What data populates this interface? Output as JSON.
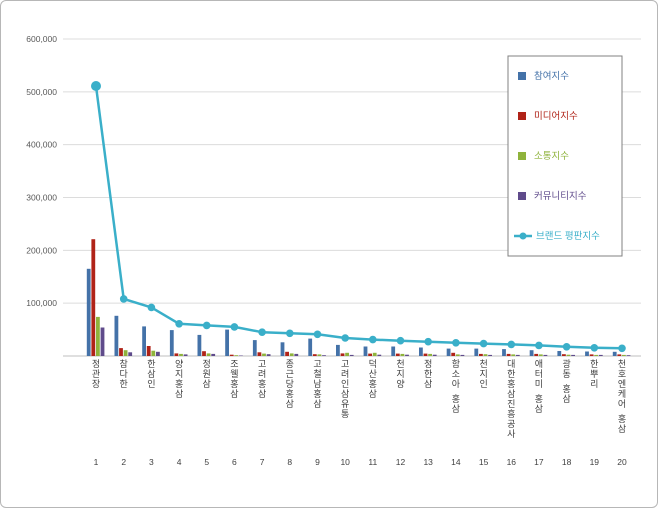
{
  "chart_data": {
    "type": "bar",
    "title": "",
    "categories": [
      "정관장",
      "참다한",
      "한삼인",
      "양지홍삼",
      "정원삼",
      "조웰홍삼",
      "고려홍삼",
      "종근당홍삼",
      "고철남홍삼",
      "고려인삼유통",
      "덕산홍삼",
      "천지양",
      "정한삼",
      "함소아 홍삼",
      "천지인",
      "대한홍삼진흥공사",
      "애터미 홍삼",
      "광동 홍삼",
      "한뿌리",
      "천호엔케어 홍삼"
    ],
    "ranks": [
      "1",
      "2",
      "3",
      "4",
      "5",
      "6",
      "7",
      "8",
      "9",
      "10",
      "11",
      "12",
      "13",
      "14",
      "15",
      "16",
      "17",
      "18",
      "19",
      "20"
    ],
    "series": [
      {
        "name": "참여지수",
        "type": "bar",
        "color": "#4472a8",
        "values": [
          165000,
          76000,
          56000,
          49000,
          40000,
          50000,
          30000,
          26000,
          33000,
          21000,
          18000,
          18000,
          16000,
          14000,
          14000,
          13000,
          11000,
          9500,
          8500,
          8000
        ]
      },
      {
        "name": "미디어지수",
        "type": "bar",
        "color": "#b02318",
        "values": [
          221000,
          15000,
          19000,
          5000,
          9000,
          2500,
          7000,
          8000,
          3500,
          5000,
          4500,
          4500,
          4500,
          6000,
          4000,
          4000,
          4000,
          3500,
          3000,
          3000
        ]
      },
      {
        "name": "소통지수",
        "type": "bar",
        "color": "#8fb33c",
        "values": [
          74000,
          11000,
          10000,
          4000,
          5000,
          1500,
          4500,
          5000,
          3000,
          6000,
          6000,
          4000,
          4000,
          3000,
          3500,
          3000,
          3000,
          2500,
          2000,
          2000
        ]
      },
      {
        "name": "커뮤니티지수",
        "type": "bar",
        "color": "#5f4b8b",
        "values": [
          54000,
          7000,
          8000,
          3000,
          4000,
          1000,
          3500,
          4000,
          1500,
          2000,
          2500,
          2500,
          2500,
          2000,
          2000,
          2000,
          2000,
          2000,
          2000,
          1500
        ]
      },
      {
        "name": "브랜드 평판지수",
        "type": "line",
        "color": "#3aafc9",
        "values": [
          511000,
          108000,
          92000,
          61000,
          58000,
          55000,
          45000,
          43000,
          41000,
          34000,
          31000,
          29000,
          27000,
          25000,
          23500,
          22000,
          20000,
          17500,
          15500,
          14500
        ]
      }
    ],
    "ylim": [
      0,
      600000
    ],
    "ytick_step": 100000,
    "ytick_labels": [
      "100,000",
      "200,000",
      "300,000",
      "400,000",
      "500,000",
      "600,000"
    ],
    "grid": true,
    "legend_position": "top-right-inside"
  }
}
